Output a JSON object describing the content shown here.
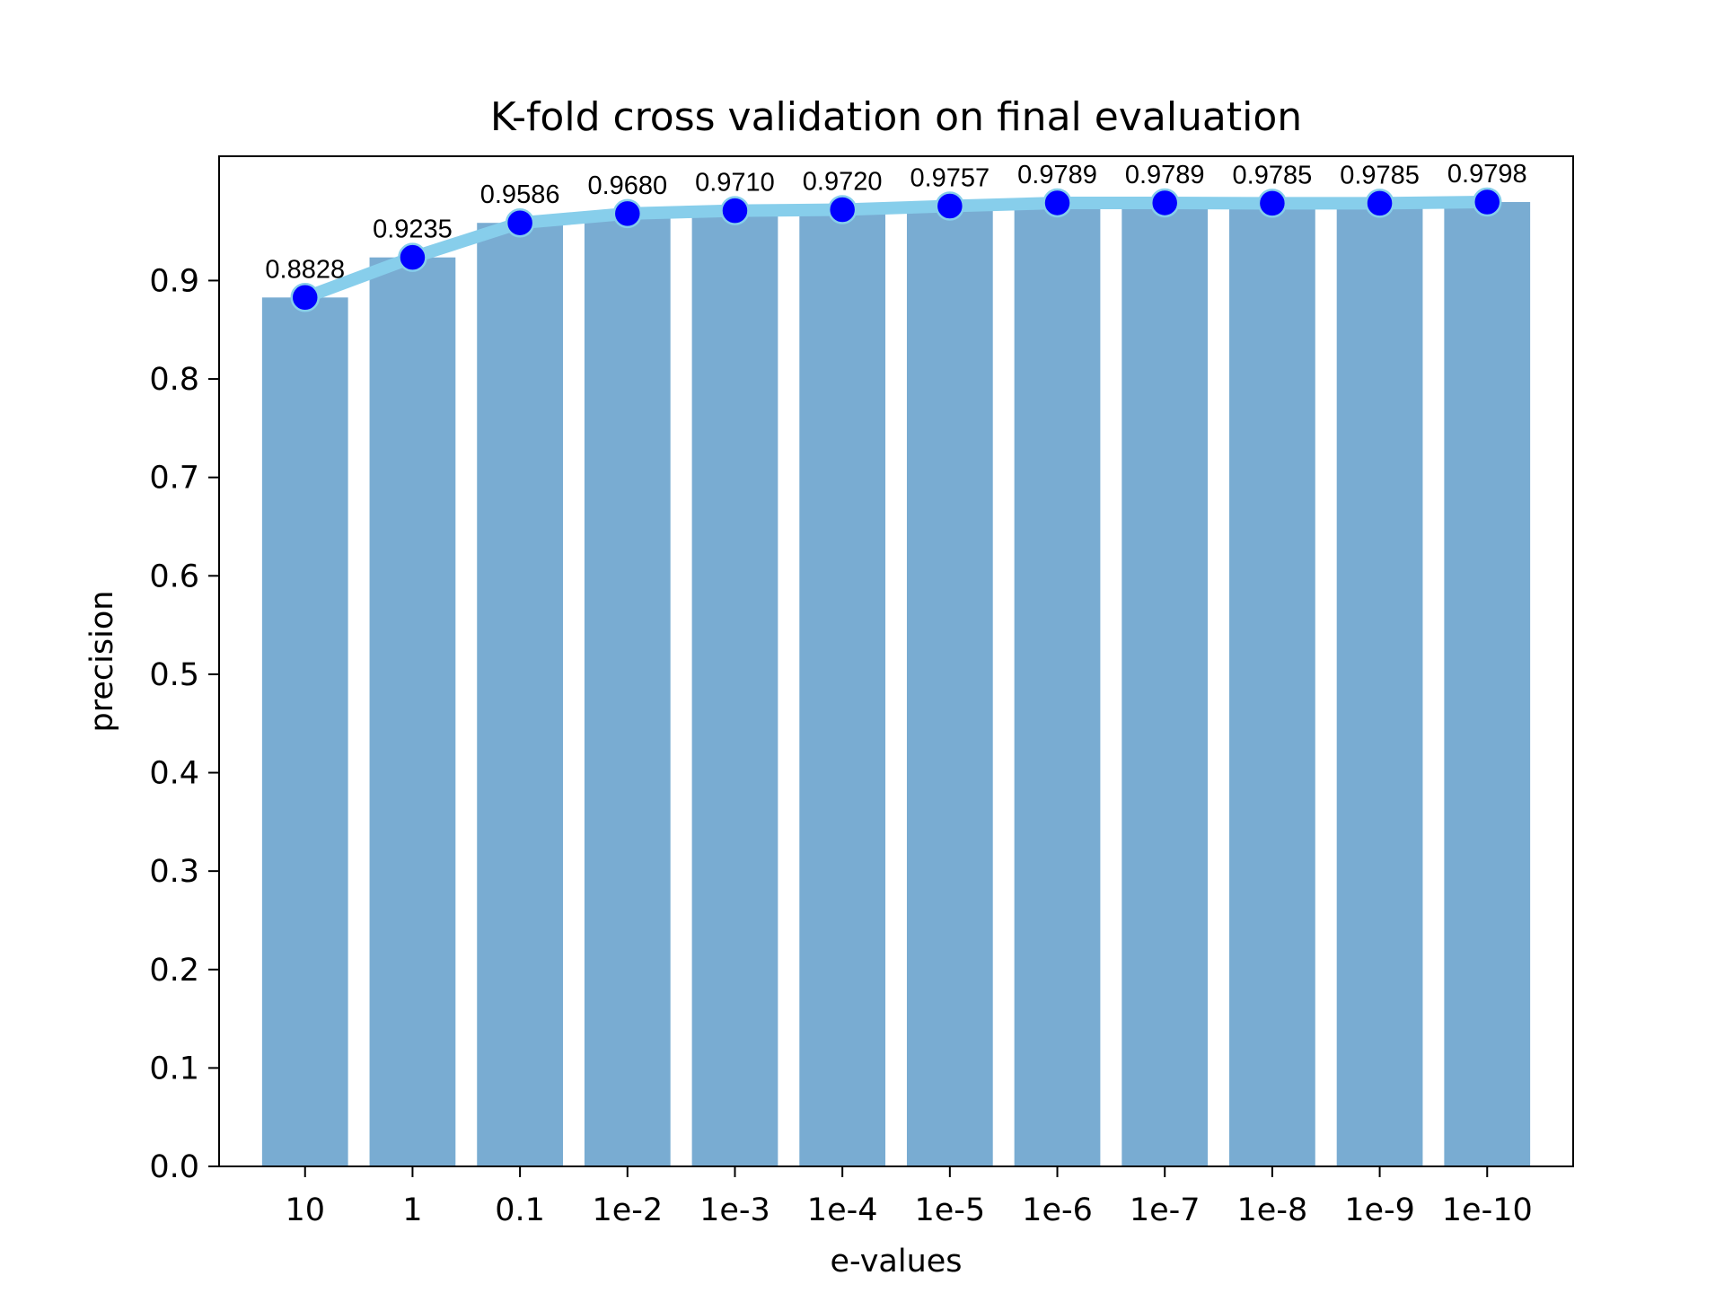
{
  "chart_data": {
    "type": "bar",
    "title": "K-fold cross validation on final evaluation",
    "xlabel": "e-values",
    "ylabel": "precision",
    "categories": [
      "10",
      "1",
      "0.1",
      "1e-2",
      "1e-3",
      "1e-4",
      "1e-5",
      "1e-6",
      "1e-7",
      "1e-8",
      "1e-9",
      "1e-10"
    ],
    "values": [
      0.8828,
      0.9235,
      0.9586,
      0.968,
      0.971,
      0.972,
      0.9757,
      0.9789,
      0.9789,
      0.9785,
      0.9785,
      0.9798
    ],
    "data_labels": [
      "0.8828",
      "0.9235",
      "0.9586",
      "0.9680",
      "0.9710",
      "0.9720",
      "0.9757",
      "0.9789",
      "0.9789",
      "0.9785",
      "0.9785",
      "0.9798"
    ],
    "overlay": {
      "type": "line",
      "values": [
        0.8828,
        0.9235,
        0.9586,
        0.968,
        0.971,
        0.972,
        0.9757,
        0.9789,
        0.9789,
        0.9785,
        0.9785,
        0.9798
      ]
    },
    "ylim": [
      0,
      1.0263
    ],
    "yticks": [
      0.0,
      0.1,
      0.2,
      0.3,
      0.4,
      0.5,
      0.6,
      0.7,
      0.8,
      0.9
    ],
    "ytick_labels": [
      "0.0",
      "0.1",
      "0.2",
      "0.3",
      "0.4",
      "0.5",
      "0.6",
      "0.7",
      "0.8",
      "0.9"
    ],
    "grid": false,
    "colors": {
      "bar": "#79acd2",
      "line": "#87ceeb",
      "marker_fill": "#0000ff",
      "marker_edge": "#87ceeb",
      "axes": "#000000"
    }
  }
}
